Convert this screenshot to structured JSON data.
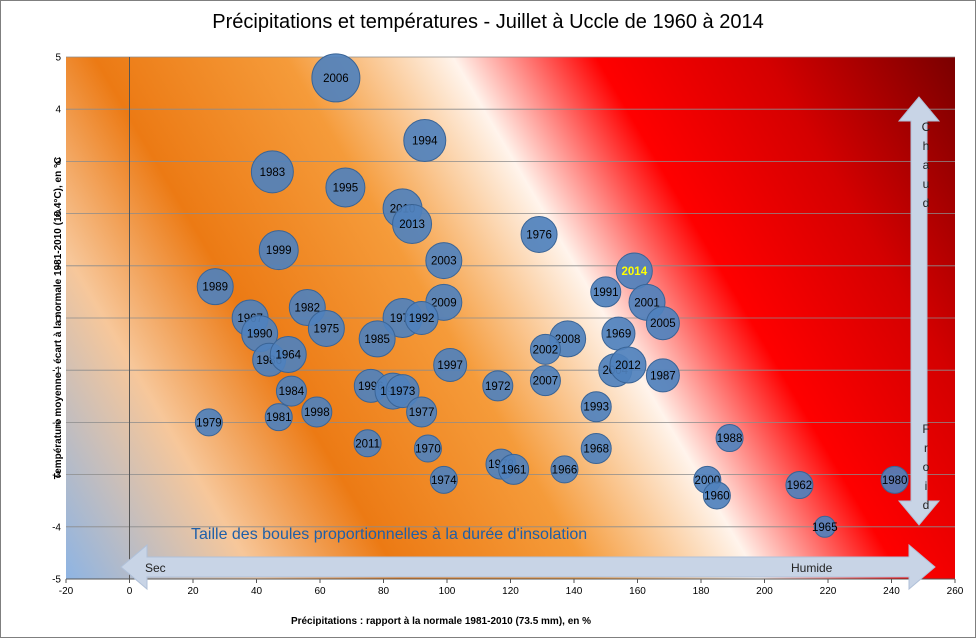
{
  "chart_data": {
    "type": "scatter",
    "title": "Précipitations et températures - Juillet à Uccle de 1960 à 2014",
    "xlabel": "Précipitations : rapport à la normale 1981-2010 (73.5 mm), en %",
    "ylabel": "Température moyenne : écart à la normale 1981-2010 (18.4°C), en °C",
    "xlim": [
      -20,
      260
    ],
    "ylim": [
      -5,
      5
    ],
    "x_ticks": [
      "-20",
      "0",
      "20",
      "40",
      "60",
      "80",
      "100",
      "120",
      "140",
      "160",
      "180",
      "200",
      "220",
      "240",
      "260"
    ],
    "y_ticks": [
      "-5",
      "-4",
      "-3",
      "-2",
      "-1",
      "0",
      "1",
      "2",
      "3",
      "4",
      "5"
    ],
    "grid": "horizontal",
    "annotation": "Taille des boules proportionnelles  à la durée d'insolation",
    "arrow_horizontal": {
      "left_label": "Sec",
      "right_label": "Humide"
    },
    "arrow_vertical": {
      "top_label": "Chaud",
      "bottom_label": "Froid"
    },
    "highlight_color": "#ffff00",
    "bubble_color": "#4f81bd",
    "points": [
      {
        "year": "2006",
        "x": 65,
        "y": 4.6,
        "size": 1.6
      },
      {
        "year": "1994",
        "x": 93,
        "y": 3.4,
        "size": 1.4
      },
      {
        "year": "1983",
        "x": 45,
        "y": 2.8,
        "size": 1.4
      },
      {
        "year": "1995",
        "x": 68,
        "y": 2.5,
        "size": 1.3
      },
      {
        "year": "2010",
        "x": 86,
        "y": 2.1,
        "size": 1.3
      },
      {
        "year": "2013",
        "x": 89,
        "y": 1.8,
        "size": 1.3
      },
      {
        "year": "1976",
        "x": 129,
        "y": 1.6,
        "size": 1.2
      },
      {
        "year": "1999",
        "x": 47,
        "y": 1.3,
        "size": 1.3
      },
      {
        "year": "2003",
        "x": 99,
        "y": 1.1,
        "size": 1.2
      },
      {
        "year": "2014",
        "x": 159,
        "y": 0.9,
        "size": 1.2,
        "highlight": true
      },
      {
        "year": "1989",
        "x": 27,
        "y": 0.6,
        "size": 1.2
      },
      {
        "year": "1991",
        "x": 150,
        "y": 0.5,
        "size": 1.0
      },
      {
        "year": "2001",
        "x": 163,
        "y": 0.3,
        "size": 1.2
      },
      {
        "year": "2009",
        "x": 99,
        "y": 0.3,
        "size": 1.2
      },
      {
        "year": "1982",
        "x": 56,
        "y": 0.2,
        "size": 1.2
      },
      {
        "year": "1967",
        "x": 38,
        "y": 0.0,
        "size": 1.2
      },
      {
        "year": "1971",
        "x": 86,
        "y": 0.0,
        "size": 1.3
      },
      {
        "year": "1992",
        "x": 92,
        "y": 0.0,
        "size": 1.1
      },
      {
        "year": "2005",
        "x": 168,
        "y": -0.1,
        "size": 1.1
      },
      {
        "year": "1975",
        "x": 62,
        "y": -0.2,
        "size": 1.2
      },
      {
        "year": "1990",
        "x": 41,
        "y": -0.3,
        "size": 1.2
      },
      {
        "year": "1969",
        "x": 154,
        "y": -0.3,
        "size": 1.1
      },
      {
        "year": "1985",
        "x": 78,
        "y": -0.4,
        "size": 1.2
      },
      {
        "year": "2008",
        "x": 138,
        "y": -0.4,
        "size": 1.2
      },
      {
        "year": "2002",
        "x": 131,
        "y": -0.6,
        "size": 1.0
      },
      {
        "year": "1986",
        "x": 44,
        "y": -0.8,
        "size": 1.1
      },
      {
        "year": "1964",
        "x": 50,
        "y": -0.7,
        "size": 1.2
      },
      {
        "year": "1997",
        "x": 101,
        "y": -0.9,
        "size": 1.1
      },
      {
        "year": "2004",
        "x": 153,
        "y": -1.0,
        "size": 1.1
      },
      {
        "year": "2012",
        "x": 157,
        "y": -0.9,
        "size": 1.2
      },
      {
        "year": "1987",
        "x": 168,
        "y": -1.1,
        "size": 1.1
      },
      {
        "year": "2007",
        "x": 131,
        "y": -1.2,
        "size": 1.0
      },
      {
        "year": "1972",
        "x": 116,
        "y": -1.3,
        "size": 1.0
      },
      {
        "year": "1996",
        "x": 76,
        "y": -1.3,
        "size": 1.1
      },
      {
        "year": "1963",
        "x": 83,
        "y": -1.4,
        "size": 1.2
      },
      {
        "year": "1973",
        "x": 86,
        "y": -1.4,
        "size": 1.1
      },
      {
        "year": "1984",
        "x": 51,
        "y": -1.4,
        "size": 1.0
      },
      {
        "year": "1993",
        "x": 147,
        "y": -1.7,
        "size": 1.0
      },
      {
        "year": "1998",
        "x": 59,
        "y": -1.8,
        "size": 1.0
      },
      {
        "year": "1977",
        "x": 92,
        "y": -1.8,
        "size": 1.0
      },
      {
        "year": "1981",
        "x": 47,
        "y": -1.9,
        "size": 0.9
      },
      {
        "year": "1979",
        "x": 25,
        "y": -2.0,
        "size": 0.9
      },
      {
        "year": "2011",
        "x": 75,
        "y": -2.4,
        "size": 0.9
      },
      {
        "year": "1970",
        "x": 94,
        "y": -2.5,
        "size": 0.9
      },
      {
        "year": "1968",
        "x": 147,
        "y": -2.5,
        "size": 1.0
      },
      {
        "year": "1988",
        "x": 189,
        "y": -2.3,
        "size": 0.9
      },
      {
        "year": "1978",
        "x": 117,
        "y": -2.8,
        "size": 1.0
      },
      {
        "year": "1961",
        "x": 121,
        "y": -2.9,
        "size": 1.0
      },
      {
        "year": "1966",
        "x": 137,
        "y": -2.9,
        "size": 0.9
      },
      {
        "year": "1974",
        "x": 99,
        "y": -3.1,
        "size": 0.9
      },
      {
        "year": "2000",
        "x": 182,
        "y": -3.1,
        "size": 0.9
      },
      {
        "year": "1980",
        "x": 241,
        "y": -3.1,
        "size": 0.9
      },
      {
        "year": "1962",
        "x": 211,
        "y": -3.2,
        "size": 0.9
      },
      {
        "year": "1960",
        "x": 185,
        "y": -3.4,
        "size": 0.9
      },
      {
        "year": "1965",
        "x": 219,
        "y": -4.0,
        "size": 0.7
      }
    ]
  }
}
